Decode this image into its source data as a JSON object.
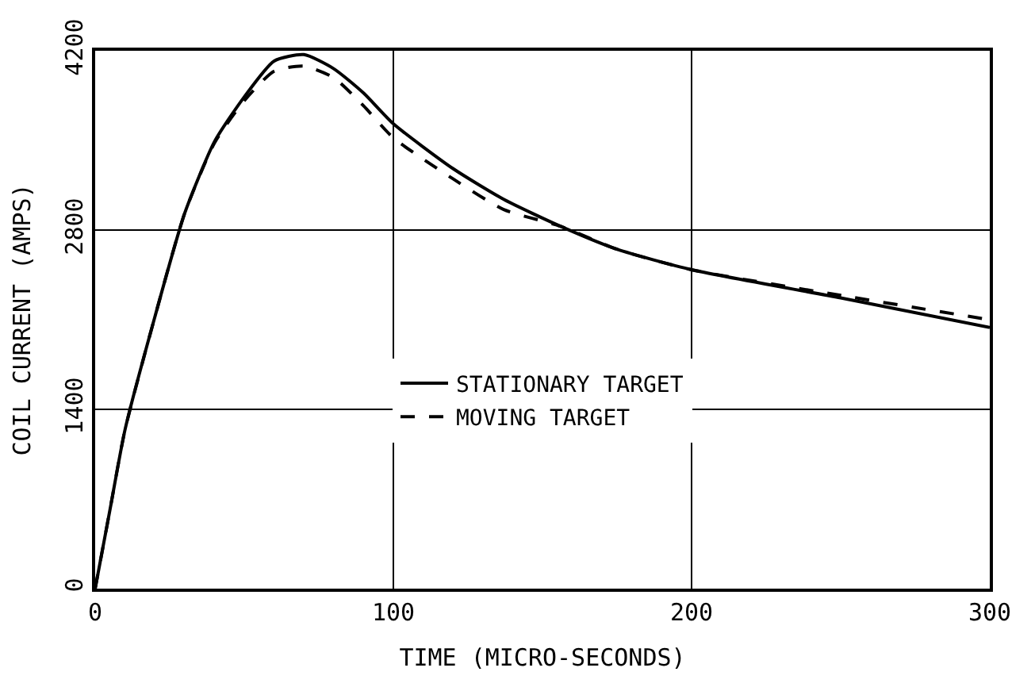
{
  "chart_data": {
    "type": "line",
    "xlabel": "TIME (MICRO-SECONDS)",
    "ylabel": "COIL CURRENT (AMPS)",
    "xlim": [
      0,
      300
    ],
    "xticks": [
      0,
      100,
      200,
      300
    ],
    "ylim": [
      0,
      4200
    ],
    "yticks": [
      0,
      1400,
      2800,
      4200
    ],
    "grid": true,
    "legend": "center",
    "marker": "none",
    "series": [
      {
        "name": "STATIONARY TARGET",
        "color": "#000000",
        "line_style": "solid",
        "x": [
          0,
          5,
          10,
          20,
          30,
          40,
          50,
          60,
          70,
          80,
          90,
          100,
          120,
          137,
          156,
          175,
          200,
          250,
          300
        ],
        "values": [
          0,
          620,
          1240,
          2120,
          2930,
          3490,
          3840,
          4120,
          4170,
          4060,
          3870,
          3630,
          3280,
          3040,
          2830,
          2650,
          2490,
          2270,
          2040
        ]
      },
      {
        "name": "MOVING TARGET",
        "color": "#000000",
        "line_style": "dashed",
        "x": [
          0,
          5,
          10,
          20,
          30,
          40,
          50,
          60,
          70,
          80,
          90,
          100,
          120,
          137,
          156,
          175,
          200,
          250,
          300
        ],
        "values": [
          0,
          620,
          1240,
          2120,
          2930,
          3480,
          3810,
          4040,
          4080,
          3990,
          3770,
          3520,
          3200,
          2960,
          2830,
          2650,
          2490,
          2290,
          2100
        ]
      }
    ]
  }
}
